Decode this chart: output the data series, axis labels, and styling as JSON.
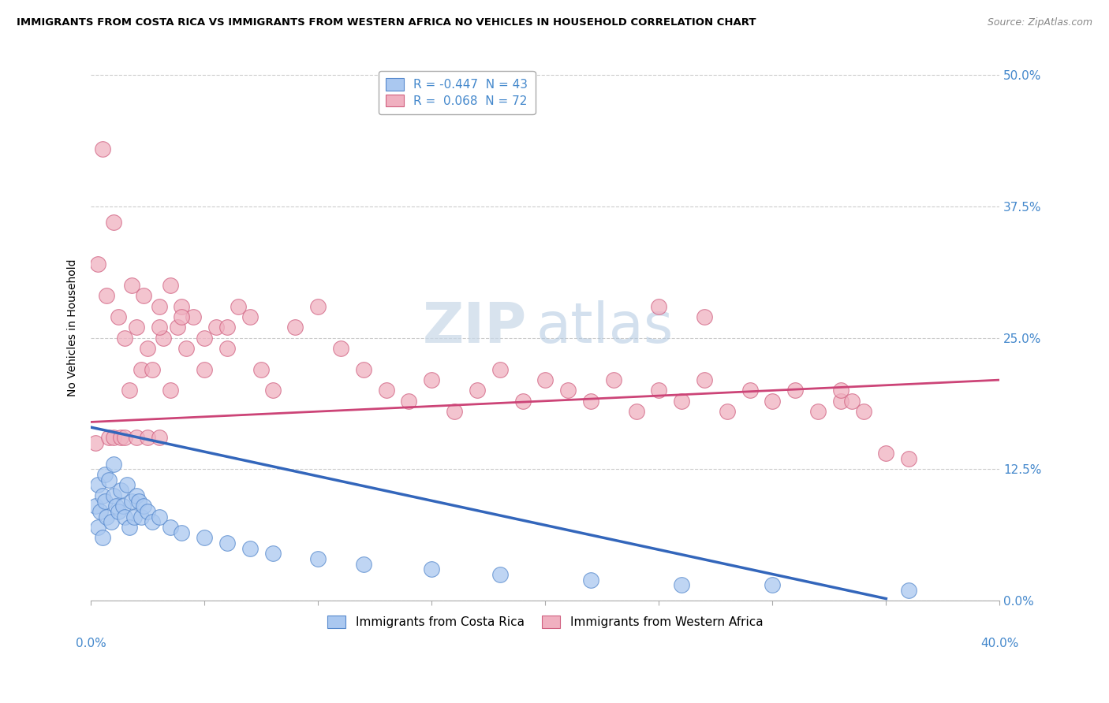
{
  "title": "IMMIGRANTS FROM COSTA RICA VS IMMIGRANTS FROM WESTERN AFRICA NO VEHICLES IN HOUSEHOLD CORRELATION CHART",
  "source": "Source: ZipAtlas.com",
  "ylabel": "No Vehicles in Household",
  "ytick_vals": [
    0.0,
    12.5,
    25.0,
    37.5,
    50.0
  ],
  "xlim": [
    0.0,
    40.0
  ],
  "ylim": [
    0.0,
    52.0
  ],
  "watermark_zip": "ZIP",
  "watermark_atlas": "atlas",
  "legend_label1": "R = -0.447  N = 43",
  "legend_label2": "R =  0.068  N = 72",
  "series1_name": "Immigrants from Costa Rica",
  "series2_name": "Immigrants from Western Africa",
  "color1_face": "#aac8f0",
  "color1_edge": "#5588cc",
  "color2_face": "#f0b0c0",
  "color2_edge": "#d06080",
  "trendline1_color": "#3366bb",
  "trendline2_color": "#cc4477",
  "cr_x": [
    0.2,
    0.3,
    0.3,
    0.4,
    0.5,
    0.5,
    0.6,
    0.6,
    0.7,
    0.8,
    0.9,
    1.0,
    1.0,
    1.1,
    1.2,
    1.3,
    1.4,
    1.5,
    1.6,
    1.7,
    1.8,
    1.9,
    2.0,
    2.1,
    2.2,
    2.3,
    2.5,
    2.7,
    3.0,
    3.5,
    4.0,
    5.0,
    6.0,
    7.0,
    8.0,
    10.0,
    12.0,
    15.0,
    18.0,
    22.0,
    26.0,
    30.0,
    36.0
  ],
  "cr_y": [
    9.0,
    7.0,
    11.0,
    8.5,
    10.0,
    6.0,
    9.5,
    12.0,
    8.0,
    11.5,
    7.5,
    10.0,
    13.0,
    9.0,
    8.5,
    10.5,
    9.0,
    8.0,
    11.0,
    7.0,
    9.5,
    8.0,
    10.0,
    9.5,
    8.0,
    9.0,
    8.5,
    7.5,
    8.0,
    7.0,
    6.5,
    6.0,
    5.5,
    5.0,
    4.5,
    4.0,
    3.5,
    3.0,
    2.5,
    2.0,
    1.5,
    1.5,
    1.0
  ],
  "wa_x": [
    0.2,
    0.3,
    0.5,
    0.7,
    0.8,
    1.0,
    1.0,
    1.2,
    1.3,
    1.5,
    1.5,
    1.7,
    1.8,
    2.0,
    2.0,
    2.2,
    2.3,
    2.5,
    2.5,
    2.7,
    3.0,
    3.0,
    3.2,
    3.5,
    3.5,
    3.8,
    4.0,
    4.2,
    4.5,
    5.0,
    5.5,
    6.0,
    6.5,
    7.0,
    7.5,
    8.0,
    9.0,
    10.0,
    11.0,
    12.0,
    13.0,
    14.0,
    15.0,
    16.0,
    17.0,
    18.0,
    19.0,
    20.0,
    21.0,
    22.0,
    23.0,
    24.0,
    25.0,
    26.0,
    27.0,
    28.0,
    29.0,
    30.0,
    31.0,
    32.0,
    33.0,
    33.0,
    33.5,
    34.0,
    35.0,
    36.0,
    25.0,
    27.0,
    3.0,
    4.0,
    5.0,
    6.0
  ],
  "wa_y": [
    15.0,
    32.0,
    43.0,
    29.0,
    15.5,
    36.0,
    15.5,
    27.0,
    15.5,
    25.0,
    15.5,
    20.0,
    30.0,
    26.0,
    15.5,
    22.0,
    29.0,
    15.5,
    24.0,
    22.0,
    28.0,
    15.5,
    25.0,
    30.0,
    20.0,
    26.0,
    28.0,
    24.0,
    27.0,
    22.0,
    26.0,
    24.0,
    28.0,
    27.0,
    22.0,
    20.0,
    26.0,
    28.0,
    24.0,
    22.0,
    20.0,
    19.0,
    21.0,
    18.0,
    20.0,
    22.0,
    19.0,
    21.0,
    20.0,
    19.0,
    21.0,
    18.0,
    20.0,
    19.0,
    21.0,
    18.0,
    20.0,
    19.0,
    20.0,
    18.0,
    19.0,
    20.0,
    19.0,
    18.0,
    14.0,
    13.5,
    28.0,
    27.0,
    26.0,
    27.0,
    25.0,
    26.0
  ]
}
